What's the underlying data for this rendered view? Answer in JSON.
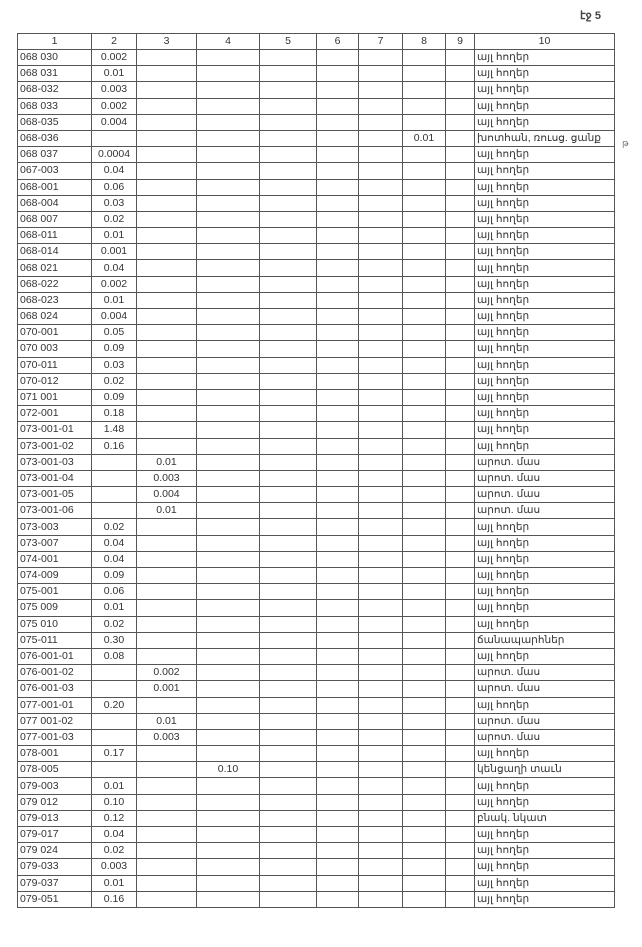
{
  "page_label": "էջ 5",
  "margin_mark": "թ",
  "headers": [
    "1",
    "2",
    "3",
    "4",
    "5",
    "6",
    "7",
    "8",
    "9",
    "10"
  ],
  "rows": [
    [
      "068 030",
      "0.002",
      "",
      "",
      "",
      "",
      "",
      "",
      "",
      "այլ հողեր"
    ],
    [
      "068 031",
      "0.01",
      "",
      "",
      "",
      "",
      "",
      "",
      "",
      "այլ հողեր"
    ],
    [
      "068-032",
      "0.003",
      "",
      "",
      "",
      "",
      "",
      "",
      "",
      "այլ հողեր"
    ],
    [
      "068 033",
      "0.002",
      "",
      "",
      "",
      "",
      "",
      "",
      "",
      "այլ հողեր"
    ],
    [
      "068-035",
      "0.004",
      "",
      "",
      "",
      "",
      "",
      "",
      "",
      "այլ հողեր"
    ],
    [
      "068-036",
      "",
      "",
      "",
      "",
      "",
      "",
      "0.01",
      "",
      "խոտհան, ռուսց. ցանք"
    ],
    [
      "068 037",
      "0.0004",
      "",
      "",
      "",
      "",
      "",
      "",
      "",
      "այլ հողեր"
    ],
    [
      "067-003",
      "0.04",
      "",
      "",
      "",
      "",
      "",
      "",
      "",
      "այլ հողեր"
    ],
    [
      "068-001",
      "0.06",
      "",
      "",
      "",
      "",
      "",
      "",
      "",
      "այլ հողեր"
    ],
    [
      "068-004",
      "0.03",
      "",
      "",
      "",
      "",
      "",
      "",
      "",
      "այլ հողեր"
    ],
    [
      "068 007",
      "0.02",
      "",
      "",
      "",
      "",
      "",
      "",
      "",
      "այլ հողեր"
    ],
    [
      "068-011",
      "0.01",
      "",
      "",
      "",
      "",
      "",
      "",
      "",
      "այլ հողեր"
    ],
    [
      "068-014",
      "0.001",
      "",
      "",
      "",
      "",
      "",
      "",
      "",
      "այլ հողեր"
    ],
    [
      "068 021",
      "0.04",
      "",
      "",
      "",
      "",
      "",
      "",
      "",
      "այլ հողեր"
    ],
    [
      "068-022",
      "0.002",
      "",
      "",
      "",
      "",
      "",
      "",
      "",
      "այլ հողեր"
    ],
    [
      "068-023",
      "0.01",
      "",
      "",
      "",
      "",
      "",
      "",
      "",
      "այլ հողեր"
    ],
    [
      "068 024",
      "0.004",
      "",
      "",
      "",
      "",
      "",
      "",
      "",
      "այլ հողեր"
    ],
    [
      "070-001",
      "0.05",
      "",
      "",
      "",
      "",
      "",
      "",
      "",
      "այլ հողեր"
    ],
    [
      "070 003",
      "0.09",
      "",
      "",
      "",
      "",
      "",
      "",
      "",
      "այլ հողեր"
    ],
    [
      "070-011",
      "0.03",
      "",
      "",
      "",
      "",
      "",
      "",
      "",
      "այլ հողեր"
    ],
    [
      "070-012",
      "0.02",
      "",
      "",
      "",
      "",
      "",
      "",
      "",
      "այլ հողեր"
    ],
    [
      "071 001",
      "0.09",
      "",
      "",
      "",
      "",
      "",
      "",
      "",
      "այլ հողեր"
    ],
    [
      "072-001",
      "0.18",
      "",
      "",
      "",
      "",
      "",
      "",
      "",
      "այլ հողեր"
    ],
    [
      "073-001-01",
      "1.48",
      "",
      "",
      "",
      "",
      "",
      "",
      "",
      "այլ հողեր"
    ],
    [
      "073-001-02",
      "0.16",
      "",
      "",
      "",
      "",
      "",
      "",
      "",
      "այլ հողեր"
    ],
    [
      "073-001-03",
      "",
      "0.01",
      "",
      "",
      "",
      "",
      "",
      "",
      "արոտ. մաս"
    ],
    [
      "073-001-04",
      "",
      "0.003",
      "",
      "",
      "",
      "",
      "",
      "",
      "արոտ. մաս"
    ],
    [
      "073-001-05",
      "",
      "0.004",
      "",
      "",
      "",
      "",
      "",
      "",
      "արոտ. մաս"
    ],
    [
      "073-001-06",
      "",
      "0.01",
      "",
      "",
      "",
      "",
      "",
      "",
      "արոտ. մաս"
    ],
    [
      "073-003",
      "0.02",
      "",
      "",
      "",
      "",
      "",
      "",
      "",
      "այլ հողեր"
    ],
    [
      "073-007",
      "0.04",
      "",
      "",
      "",
      "",
      "",
      "",
      "",
      "այլ հողեր"
    ],
    [
      "074-001",
      "0.04",
      "",
      "",
      "",
      "",
      "",
      "",
      "",
      "այլ հողեր"
    ],
    [
      "074-009",
      "0.09",
      "",
      "",
      "",
      "",
      "",
      "",
      "",
      "այլ հողեր"
    ],
    [
      "075-001",
      "0.06",
      "",
      "",
      "",
      "",
      "",
      "",
      "",
      "այլ հողեր"
    ],
    [
      "075 009",
      "0.01",
      "",
      "",
      "",
      "",
      "",
      "",
      "",
      "այլ հողեր"
    ],
    [
      "075 010",
      "0.02",
      "",
      "",
      "",
      "",
      "",
      "",
      "",
      "այլ հողեր"
    ],
    [
      "075-011",
      "0.30",
      "",
      "",
      "",
      "",
      "",
      "",
      "",
      "ճանապարհներ"
    ],
    [
      "076-001-01",
      "0.08",
      "",
      "",
      "",
      "",
      "",
      "",
      "",
      "այլ հողեր"
    ],
    [
      "076-001-02",
      "",
      "0.002",
      "",
      "",
      "",
      "",
      "",
      "",
      "արոտ. մաս"
    ],
    [
      "076-001-03",
      "",
      "0.001",
      "",
      "",
      "",
      "",
      "",
      "",
      "արոտ. մաս"
    ],
    [
      "077-001-01",
      "0.20",
      "",
      "",
      "",
      "",
      "",
      "",
      "",
      "այլ հողեր"
    ],
    [
      "077 001-02",
      "",
      "0.01",
      "",
      "",
      "",
      "",
      "",
      "",
      "արոտ. մաս"
    ],
    [
      "077-001-03",
      "",
      "0.003",
      "",
      "",
      "",
      "",
      "",
      "",
      "արոտ. մաս"
    ],
    [
      "078-001",
      "0.17",
      "",
      "",
      "",
      "",
      "",
      "",
      "",
      "այլ հողեր"
    ],
    [
      "078-005",
      "",
      "",
      "0.10",
      "",
      "",
      "",
      "",
      "",
      "կենցաղի տաւն"
    ],
    [
      "079-003",
      "0.01",
      "",
      "",
      "",
      "",
      "",
      "",
      "",
      "այլ հողեր"
    ],
    [
      "079 012",
      "0.10",
      "",
      "",
      "",
      "",
      "",
      "",
      "",
      "այլ հողեր"
    ],
    [
      "079-013",
      "0.12",
      "",
      "",
      "",
      "",
      "",
      "",
      "",
      "բնակ. նկատ"
    ],
    [
      "079-017",
      "0.04",
      "",
      "",
      "",
      "",
      "",
      "",
      "",
      "այլ հողեր"
    ],
    [
      "079 024",
      "0.02",
      "",
      "",
      "",
      "",
      "",
      "",
      "",
      "այլ հողեր"
    ],
    [
      "079-033",
      "0.003",
      "",
      "",
      "",
      "",
      "",
      "",
      "",
      "այլ հողեր"
    ],
    [
      "079-037",
      "0.01",
      "",
      "",
      "",
      "",
      "",
      "",
      "",
      "այլ հողեր"
    ],
    [
      "079-051",
      "0.16",
      "",
      "",
      "",
      "",
      "",
      "",
      "",
      "այլ հողեր"
    ]
  ]
}
